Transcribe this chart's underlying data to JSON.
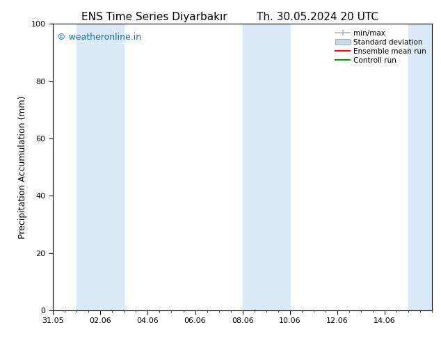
{
  "title_left": "ENS Time Series Diyarbakır",
  "title_right": "Th. 30.05.2024 20 UTC",
  "ylabel": "Precipitation Accumulation (mm)",
  "xlabel": "",
  "ylim": [
    0,
    100
  ],
  "xlim": [
    0,
    16
  ],
  "xtick_positions": [
    0,
    2,
    4,
    6,
    8,
    10,
    12,
    14
  ],
  "xtick_labels": [
    "31.05",
    "02.06",
    "04.06",
    "06.06",
    "08.06",
    "10.06",
    "12.06",
    "14.06"
  ],
  "ytick_positions": [
    0,
    20,
    40,
    60,
    80,
    100
  ],
  "ytick_labels": [
    "0",
    "20",
    "40",
    "60",
    "80",
    "100"
  ],
  "background_color": "#ffffff",
  "plot_bg_color": "#ffffff",
  "shaded_bands": [
    {
      "x_start": 1,
      "x_end": 3,
      "color": "#daeaf8"
    },
    {
      "x_start": 8,
      "x_end": 10,
      "color": "#daeaf8"
    },
    {
      "x_start": 15,
      "x_end": 16,
      "color": "#daeaf8"
    }
  ],
  "watermark_text": "© weatheronline.in",
  "watermark_color": "#1a6faf",
  "legend_entries": [
    {
      "label": "min/max",
      "color": "#b0b8c0",
      "style": "errorbar"
    },
    {
      "label": "Standard deviation",
      "color": "#c8d8e8",
      "style": "bar"
    },
    {
      "label": "Ensemble mean run",
      "color": "#ff0000",
      "style": "line"
    },
    {
      "label": "Controll run",
      "color": "#00aa00",
      "style": "line"
    }
  ],
  "title_fontsize": 11,
  "axis_label_fontsize": 9,
  "tick_fontsize": 8,
  "watermark_fontsize": 9,
  "legend_fontsize": 7.5
}
